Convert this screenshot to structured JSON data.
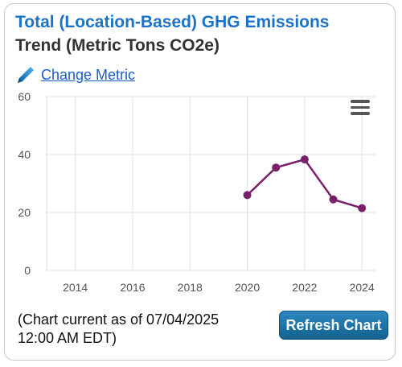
{
  "widget": {
    "title_line1": "Total (Location-Based) GHG Emissions",
    "title_line2": "Trend (Metric Tons CO2e)",
    "change_metric_label": "Change Metric",
    "footer_line1": "(Chart current as of 07/04/2025",
    "footer_line2": "12:00 AM EDT)",
    "refresh_label": "Refresh Chart",
    "menu_icon": "hamburger-menu-icon",
    "edit_icon": "pencil-icon",
    "colors": {
      "title": "#1a73c9",
      "link": "#1a5dc9",
      "series": "#7a1f6a",
      "button": "#1a6fa0"
    }
  },
  "chart_data": {
    "type": "line",
    "title": "",
    "xlabel": "",
    "ylabel": "",
    "x": [
      2020,
      2021,
      2022,
      2023,
      2024
    ],
    "series": [
      {
        "values": [
          26,
          35.5,
          38.3,
          24.5,
          21.5
        ]
      }
    ],
    "x_ticks": [
      "2014",
      "2016",
      "2018",
      "2020",
      "2022",
      "2024"
    ],
    "y_ticks": [
      "0",
      "20",
      "40",
      "60"
    ],
    "xlim": [
      2013,
      2024.5
    ],
    "ylim": [
      0,
      60
    ],
    "grid": true,
    "legend": "none"
  }
}
